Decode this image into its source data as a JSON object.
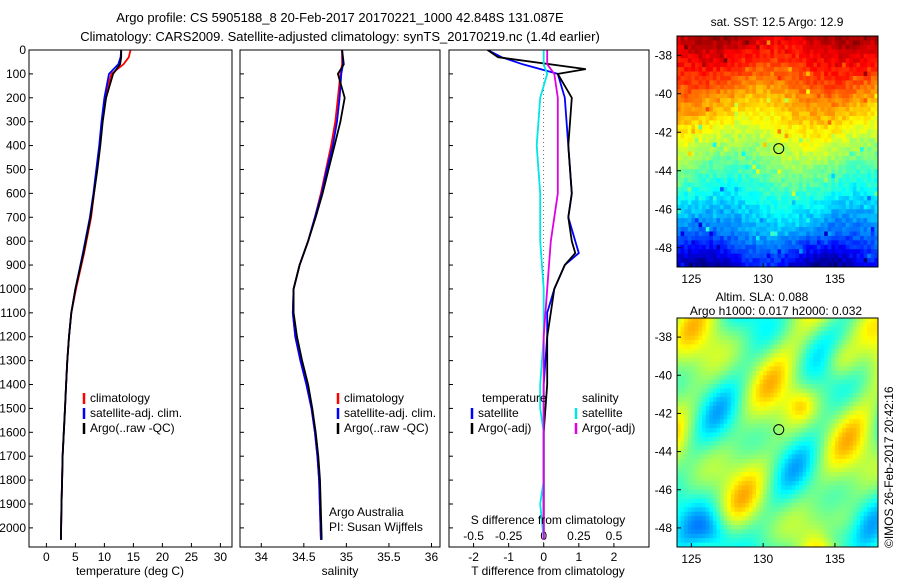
{
  "header": {
    "line1": "Argo profile: CS 5905188_8 20-Feb-2017 20170221_1000 42.848S 131.087E",
    "line2": "Climatology: CARS2009. Satellite-adjusted climatology: synTS_20170219.nc (1.4d earlier)"
  },
  "chart_data": [
    {
      "id": "temperature",
      "type": "line",
      "xlabel": "temperature (deg C)",
      "ylabel": "",
      "xlim": [
        -3,
        32
      ],
      "ylim": [
        0,
        2080
      ],
      "y_inverted": true,
      "xticks": [
        0,
        5,
        10,
        15,
        20,
        25,
        30
      ],
      "yticks": [
        0,
        100,
        200,
        300,
        400,
        500,
        600,
        700,
        800,
        900,
        1000,
        1100,
        1200,
        1300,
        1400,
        1500,
        1600,
        1700,
        1800,
        1900,
        2000
      ],
      "legend": [
        "climatology",
        "satellite-adj. clim.",
        "Argo(..raw -QC)"
      ],
      "legend_position": "lower-middle",
      "series": [
        {
          "name": "climatology",
          "color": "#ff0000",
          "x": [
            14.5,
            14.2,
            13.3,
            11.2,
            10.6,
            10.1,
            9.6,
            9.2,
            8.7,
            8.2,
            7.7,
            6.5,
            5.1,
            4.3,
            3.9,
            3.6,
            3.4,
            3.2,
            3.0,
            2.8,
            2.7,
            2.6,
            2.5
          ],
          "y": [
            0,
            30,
            60,
            100,
            150,
            200,
            300,
            400,
            500,
            600,
            700,
            850,
            1000,
            1100,
            1200,
            1300,
            1400,
            1500,
            1600,
            1700,
            1800,
            1900,
            2050
          ]
        },
        {
          "name": "satellite-adj. clim.",
          "color": "#0000ff",
          "x": [
            12.9,
            12.8,
            12.4,
            10.8,
            10.4,
            10.0,
            9.5,
            9.1,
            8.6,
            8.1,
            7.5,
            6.3,
            5.0,
            4.3,
            3.9,
            3.6,
            3.4,
            3.2,
            3.0,
            2.8,
            2.7,
            2.6,
            2.5
          ],
          "y": [
            0,
            30,
            60,
            100,
            150,
            200,
            300,
            400,
            500,
            600,
            700,
            850,
            1000,
            1100,
            1200,
            1300,
            1400,
            1500,
            1600,
            1700,
            1800,
            1900,
            2050
          ]
        },
        {
          "name": "Argo(..raw -QC)",
          "color": "#000000",
          "x": [
            12.9,
            12.9,
            12.7,
            11.5,
            10.9,
            10.3,
            9.7,
            9.3,
            8.8,
            8.2,
            7.6,
            6.4,
            5.0,
            4.3,
            3.9,
            3.6,
            3.4,
            3.2,
            3.0,
            2.8,
            2.7,
            2.6,
            2.5
          ],
          "y": [
            0,
            30,
            60,
            100,
            150,
            200,
            300,
            400,
            500,
            600,
            700,
            850,
            1000,
            1100,
            1200,
            1300,
            1400,
            1500,
            1600,
            1700,
            1800,
            1900,
            2050
          ]
        }
      ]
    },
    {
      "id": "salinity",
      "type": "line",
      "xlabel": "salinity",
      "ylabel": "",
      "xlim": [
        33.75,
        36.1
      ],
      "ylim": [
        0,
        2080
      ],
      "y_inverted": true,
      "xticks": [
        34,
        34.5,
        35,
        35.5,
        36
      ],
      "legend": [
        "climatology",
        "satellite-adj. clim.",
        "Argo(..raw -QC)"
      ],
      "legend_position": "lower-middle",
      "annotation": [
        "Argo Australia",
        "PI: Susan Wijffels"
      ],
      "series": [
        {
          "name": "climatology",
          "color": "#ff0000",
          "x": [
            34.95,
            34.95,
            34.93,
            34.9,
            34.87,
            34.82,
            34.76,
            34.7,
            34.63,
            34.55,
            34.45,
            34.38,
            34.37,
            34.4,
            34.46,
            34.53,
            34.59,
            34.63,
            34.66,
            34.68,
            34.7
          ],
          "y": [
            0,
            60,
            100,
            200,
            300,
            400,
            500,
            600,
            700,
            800,
            900,
            1000,
            1100,
            1200,
            1300,
            1400,
            1500,
            1600,
            1700,
            1800,
            2050
          ]
        },
        {
          "name": "satellite-adj. clim.",
          "color": "#0000ff",
          "x": [
            34.95,
            34.96,
            34.94,
            34.92,
            34.89,
            34.84,
            34.77,
            34.71,
            34.63,
            34.55,
            34.45,
            34.38,
            34.37,
            34.4,
            34.46,
            34.53,
            34.59,
            34.63,
            34.66,
            34.68,
            34.7
          ],
          "y": [
            0,
            60,
            100,
            200,
            300,
            400,
            500,
            600,
            700,
            800,
            900,
            1000,
            1100,
            1200,
            1300,
            1400,
            1500,
            1600,
            1700,
            1800,
            2050
          ]
        },
        {
          "name": "Argo(..raw -QC)",
          "color": "#000000",
          "x": [
            34.95,
            34.97,
            34.9,
            34.98,
            34.93,
            34.86,
            34.79,
            34.72,
            34.64,
            34.55,
            34.45,
            34.38,
            34.38,
            34.42,
            34.48,
            34.55,
            34.6,
            34.64,
            34.67,
            34.69,
            34.71
          ],
          "y": [
            0,
            60,
            100,
            200,
            300,
            400,
            500,
            600,
            700,
            800,
            900,
            1000,
            1100,
            1200,
            1300,
            1400,
            1500,
            1600,
            1700,
            1800,
            2050
          ]
        }
      ]
    },
    {
      "id": "difference",
      "type": "line",
      "xlabel": "T difference from climatology",
      "top_label": "S difference from climatology",
      "xlim": [
        -2.7,
        3.0
      ],
      "ylim": [
        0,
        2080
      ],
      "y_inverted": true,
      "xticks": [
        -2,
        -1,
        0,
        1,
        2
      ],
      "top_ticks": [
        "-0.5",
        "-0.25",
        "0",
        "0.25",
        "0.5"
      ],
      "top_tick_positions": [
        -2,
        -1,
        0,
        1,
        2
      ],
      "legend_groups": [
        {
          "title": "temperature",
          "items": [
            "satellite",
            "Argo(-adj)"
          ]
        },
        {
          "title": "salinity",
          "items": [
            "satellite",
            "Argo(-adj)"
          ]
        }
      ],
      "series": [
        {
          "name": "temperature satellite",
          "color": "#0000ff",
          "x": [
            -1.6,
            -1.2,
            -0.6,
            0.4,
            0.6,
            0.7,
            0.8,
            0.7,
            0.9,
            1.0,
            0.6,
            0.3,
            0.1,
            0.1,
            0.0,
            0.0,
            0.0,
            0.0,
            0.0,
            0.0
          ],
          "y": [
            0,
            30,
            60,
            100,
            200,
            400,
            600,
            700,
            800,
            850,
            900,
            1000,
            1100,
            1200,
            1400,
            1600,
            1700,
            1800,
            1900,
            2050
          ]
        },
        {
          "name": "temperature Argo(-adj)",
          "color": "#000000",
          "x": [
            -1.6,
            -1.3,
            1.2,
            0.4,
            0.8,
            0.7,
            0.8,
            0.7,
            0.8,
            0.9,
            0.6,
            0.3,
            0.2,
            0.1,
            0.1,
            0.0,
            0.0,
            0.0,
            0.0,
            0.0
          ],
          "y": [
            0,
            30,
            80,
            100,
            200,
            400,
            600,
            700,
            800,
            850,
            900,
            1000,
            1100,
            1200,
            1400,
            1600,
            1700,
            1800,
            1900,
            2050
          ]
        },
        {
          "name": "salinity satellite",
          "color": "#00e5e5",
          "x": [
            0.0,
            0.0,
            0.1,
            -0.1,
            -0.2,
            -0.1,
            -0.1,
            0.0,
            0.0,
            -0.1,
            -0.1,
            0.0,
            0.0,
            -0.1,
            0.0
          ],
          "y": [
            0,
            60,
            100,
            200,
            400,
            600,
            800,
            1000,
            1200,
            1400,
            1500,
            1600,
            1800,
            1900,
            2050
          ]
        },
        {
          "name": "salinity Argo(-adj)",
          "color": "#e000e0",
          "x": [
            0.1,
            0.1,
            0.3,
            0.4,
            0.4,
            0.4,
            0.2,
            0.1,
            0.0,
            0.0,
            0.0,
            0.0,
            0.0,
            0.0,
            0.0
          ],
          "y": [
            0,
            60,
            100,
            200,
            400,
            600,
            800,
            1000,
            1200,
            1400,
            1500,
            1600,
            1800,
            1900,
            2050
          ]
        }
      ]
    },
    {
      "id": "sst_map",
      "type": "heatmap",
      "title": "sat. SST: 12.5  Argo: 12.9",
      "xlim": [
        124,
        138
      ],
      "ylim": [
        -49,
        -37
      ],
      "xticks": [
        125,
        130,
        135
      ],
      "yticks": [
        -38,
        -40,
        -42,
        -44,
        -46,
        -48
      ],
      "marker": {
        "lon": 131.087,
        "lat": -42.848
      },
      "colormap": "jet"
    },
    {
      "id": "sla_map",
      "type": "heatmap",
      "title_line1": "Altim. SLA: 0.088",
      "title_line2": "Argo h1000: 0.017  h2000: 0.032",
      "xlim": [
        124,
        138
      ],
      "ylim": [
        -49,
        -37
      ],
      "xticks": [
        125,
        130,
        135
      ],
      "yticks": [
        -38,
        -40,
        -42,
        -44,
        -46,
        -48
      ],
      "marker": {
        "lon": 131.087,
        "lat": -42.848
      },
      "colormap": "jet"
    }
  ],
  "credit": "©IMOS 26-Feb-2017 20:42:16"
}
